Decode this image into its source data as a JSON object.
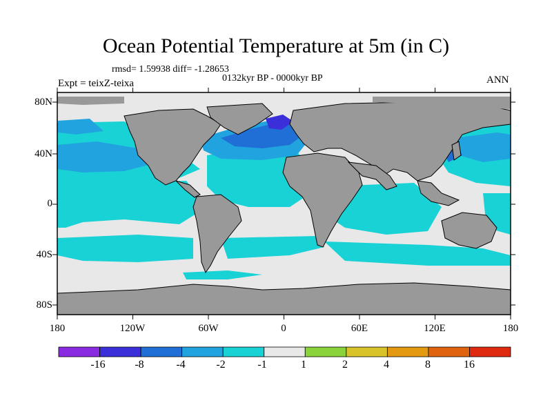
{
  "title": "Ocean Potential Temperature at 5m (in C)",
  "stats": "rmsd= 1.59938 diff= -1.28653",
  "period": "0132kyr BP - 0000kyr BP",
  "experiment": "Expt = teixZ-teixa",
  "season": "ANN",
  "lat_labels": [
    "80N",
    "40N",
    "0",
    "40S",
    "80S"
  ],
  "lon_labels": [
    "180",
    "120W",
    "60W",
    "0",
    "60E",
    "120E",
    "180"
  ],
  "colorbar": {
    "labels": [
      "-16",
      "-8",
      "-4",
      "-2",
      "-1",
      "1",
      "2",
      "4",
      "8",
      "16"
    ],
    "colors": [
      "#8a2be2",
      "#3b2fd9",
      "#1f6fd6",
      "#21a3e0",
      "#19d2d6",
      "#e8e8e8",
      "#8bd33a",
      "#d8c42a",
      "#e39a10",
      "#e06410",
      "#e02a10"
    ]
  },
  "colors": {
    "land": "#999999",
    "ocean_zero": "#e8e8e8",
    "minus1": "#19d2d6",
    "minus2": "#21a3e0",
    "minus4": "#1f6fd6",
    "minus8": "#3b2fd9"
  }
}
